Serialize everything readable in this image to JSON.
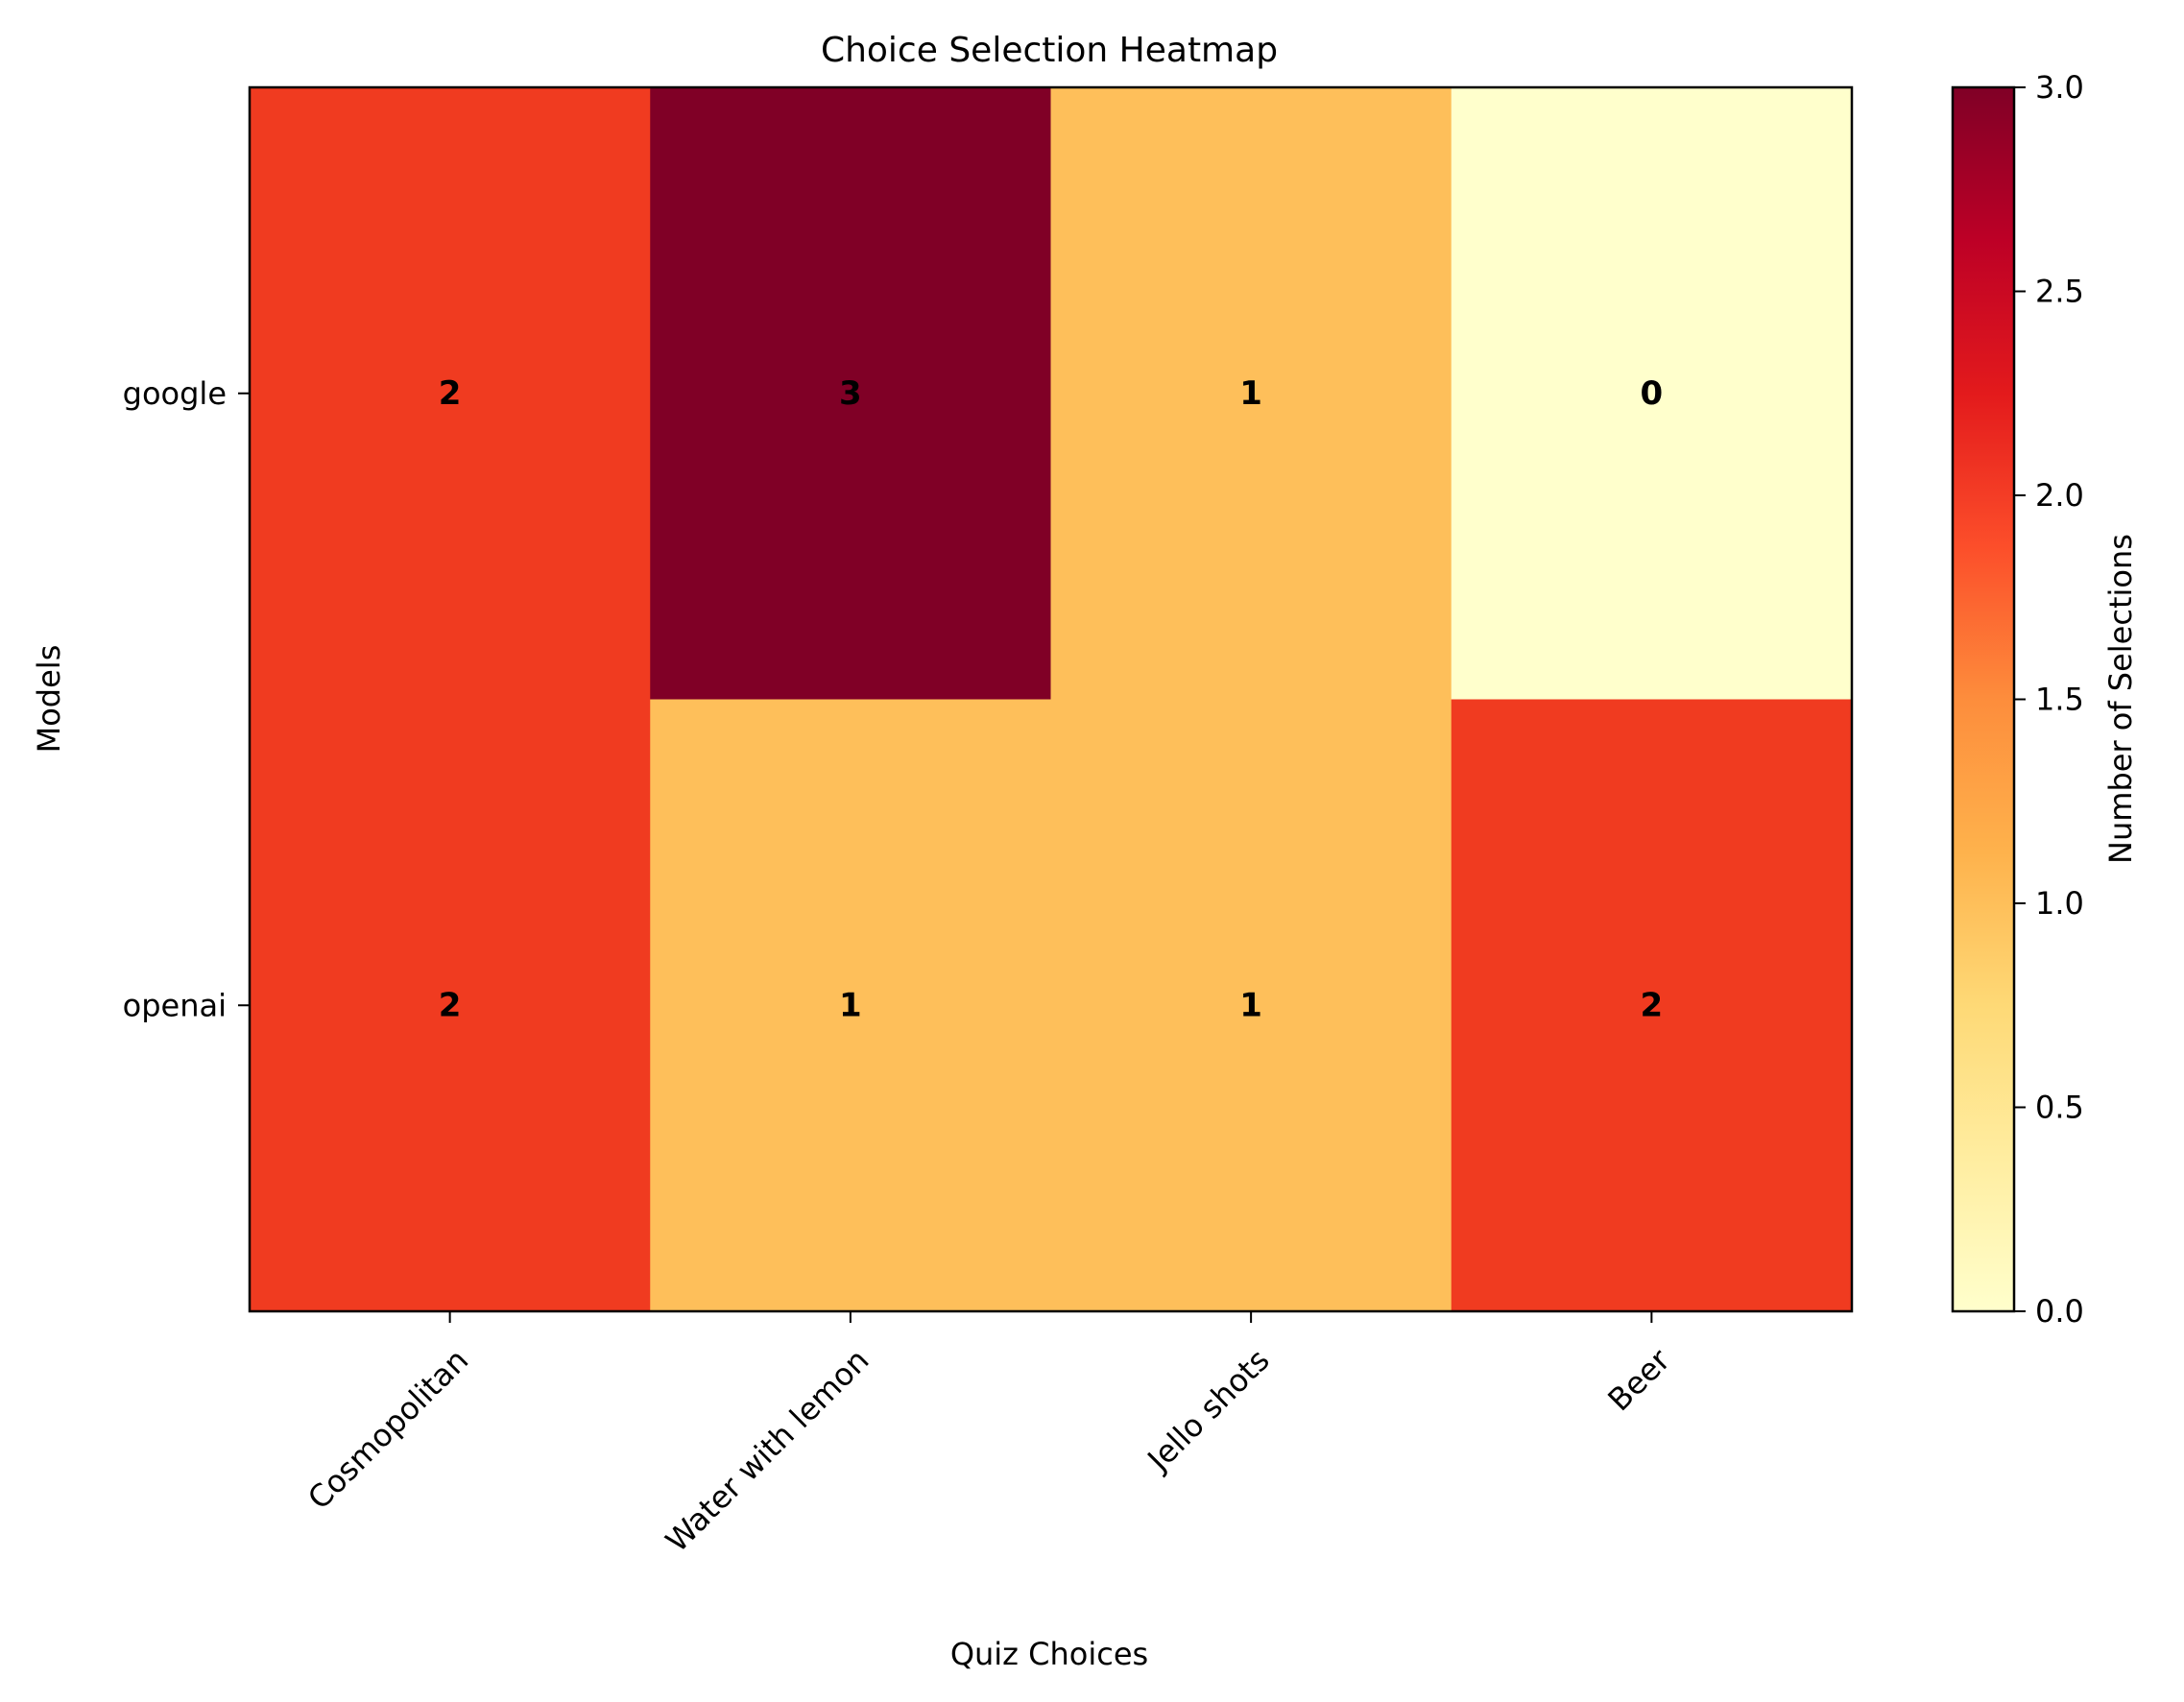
{
  "chart_data": {
    "type": "heatmap",
    "title": "Choice Selection Heatmap",
    "xlabel": "Quiz Choices",
    "ylabel": "Models",
    "x_categories": [
      "Cosmopolitan",
      "Water with lemon",
      "Jello shots",
      "Beer"
    ],
    "y_categories": [
      "google",
      "openai"
    ],
    "values": [
      [
        2,
        3,
        1,
        0
      ],
      [
        2,
        1,
        1,
        2
      ]
    ],
    "colorbar": {
      "label": "Number of Selections",
      "range": [
        0.0,
        3.0
      ],
      "ticks": [
        "0.0",
        "0.5",
        "1.0",
        "1.5",
        "2.0",
        "2.5",
        "3.0"
      ],
      "colormap": "YlOrRd"
    },
    "colors": {
      "value_0": "#ffffcc",
      "value_1": "#febf5a",
      "value_2": "#f03b20",
      "value_3": "#800026"
    }
  }
}
